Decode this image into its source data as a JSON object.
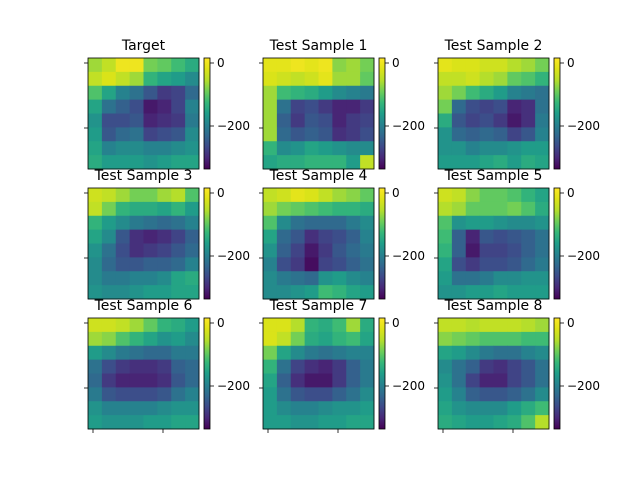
{
  "chart_data": {
    "type": "heatmap",
    "colormap": "viridis",
    "vmin": -310,
    "vmax": 15,
    "colorbar_ticks": [
      0,
      -200
    ],
    "colorbar_tick_labels": [
      "0",
      "−200"
    ],
    "grid_shape": [
      8,
      8
    ],
    "panels": [
      {
        "title": "Target",
        "values": [
          [
            -60,
            -40,
            0,
            0,
            -80,
            -90,
            -110,
            -130
          ],
          [
            -40,
            -20,
            -40,
            -60,
            -120,
            -140,
            -150,
            -170
          ],
          [
            -100,
            -140,
            -180,
            -200,
            -230,
            -260,
            -250,
            -210
          ],
          [
            -140,
            -200,
            -220,
            -240,
            -290,
            -280,
            -250,
            -180
          ],
          [
            -160,
            -240,
            -240,
            -230,
            -280,
            -270,
            -260,
            -190
          ],
          [
            -150,
            -230,
            -210,
            -200,
            -250,
            -240,
            -230,
            -170
          ],
          [
            -140,
            -180,
            -170,
            -170,
            -180,
            -180,
            -170,
            -160
          ],
          [
            -130,
            -150,
            -150,
            -150,
            -160,
            -150,
            -140,
            -140
          ]
        ]
      },
      {
        "title": "Test Sample 1",
        "values": [
          [
            -10,
            -10,
            0,
            -10,
            0,
            -70,
            -60,
            -80
          ],
          [
            -20,
            -30,
            -40,
            -30,
            -10,
            -60,
            -60,
            -90
          ],
          [
            -60,
            -110,
            -120,
            -130,
            -150,
            -170,
            -180,
            -190
          ],
          [
            -60,
            -200,
            -250,
            -240,
            -260,
            -280,
            -280,
            -260
          ],
          [
            -60,
            -220,
            -260,
            -230,
            -240,
            -280,
            -260,
            -250
          ],
          [
            -60,
            -210,
            -230,
            -220,
            -230,
            -270,
            -260,
            -240
          ],
          [
            -120,
            -170,
            -160,
            -140,
            -150,
            -160,
            -170,
            -170
          ],
          [
            -140,
            -130,
            -130,
            -120,
            -120,
            -120,
            -150,
            -40
          ]
        ]
      },
      {
        "title": "Test Sample 2",
        "values": [
          [
            -10,
            -20,
            -20,
            -30,
            -30,
            -50,
            -60,
            -80
          ],
          [
            -40,
            -40,
            -30,
            -50,
            -60,
            -90,
            -100,
            -120
          ],
          [
            -60,
            -80,
            -110,
            -130,
            -150,
            -180,
            -190,
            -200
          ],
          [
            -80,
            -210,
            -240,
            -250,
            -240,
            -280,
            -270,
            -200
          ],
          [
            -130,
            -230,
            -250,
            -240,
            -260,
            -290,
            -270,
            -190
          ],
          [
            -160,
            -210,
            -220,
            -210,
            -220,
            -250,
            -230,
            -180
          ],
          [
            -160,
            -160,
            -180,
            -170,
            -170,
            -160,
            -150,
            -150
          ],
          [
            -150,
            -150,
            -150,
            -140,
            -130,
            -150,
            -130,
            -140
          ]
        ]
      },
      {
        "title": "Test Sample 3",
        "values": [
          [
            -30,
            -40,
            -60,
            -80,
            -80,
            -60,
            -50,
            -100
          ],
          [
            -40,
            -80,
            -120,
            -130,
            -130,
            -140,
            -120,
            -150
          ],
          [
            -120,
            -150,
            -170,
            -190,
            -200,
            -210,
            -200,
            -180
          ],
          [
            -140,
            -170,
            -230,
            -270,
            -280,
            -270,
            -250,
            -220
          ],
          [
            -160,
            -200,
            -240,
            -270,
            -260,
            -250,
            -230,
            -210
          ],
          [
            -170,
            -210,
            -230,
            -230,
            -220,
            -220,
            -210,
            -180
          ],
          [
            -170,
            -190,
            -190,
            -180,
            -180,
            -170,
            -140,
            -130
          ],
          [
            -160,
            -170,
            -170,
            -160,
            -150,
            -150,
            -140,
            -140
          ]
        ]
      },
      {
        "title": "Test Sample 4",
        "values": [
          [
            -40,
            -30,
            -10,
            -20,
            -40,
            -60,
            -70,
            -90
          ],
          [
            -60,
            -80,
            -90,
            -100,
            -110,
            -120,
            -120,
            -130
          ],
          [
            -100,
            -170,
            -200,
            -210,
            -210,
            -210,
            -190,
            -170
          ],
          [
            -140,
            -210,
            -230,
            -270,
            -250,
            -240,
            -220,
            -180
          ],
          [
            -160,
            -220,
            -250,
            -290,
            -260,
            -230,
            -210,
            -190
          ],
          [
            -180,
            -240,
            -260,
            -300,
            -250,
            -240,
            -220,
            -200
          ],
          [
            -170,
            -190,
            -200,
            -210,
            -160,
            -150,
            -170,
            -180
          ],
          [
            -170,
            -170,
            -160,
            -150,
            -110,
            -120,
            -140,
            -150
          ]
        ]
      },
      {
        "title": "Test Sample 5",
        "values": [
          [
            -30,
            -40,
            -70,
            -90,
            -90,
            -100,
            -120,
            -140
          ],
          [
            -50,
            -60,
            -90,
            -90,
            -90,
            -80,
            -100,
            -130
          ],
          [
            -100,
            -160,
            -150,
            -150,
            -160,
            -170,
            -170,
            -160
          ],
          [
            -110,
            -220,
            -280,
            -230,
            -240,
            -230,
            -220,
            -200
          ],
          [
            -120,
            -220,
            -290,
            -250,
            -250,
            -240,
            -220,
            -200
          ],
          [
            -140,
            -240,
            -260,
            -240,
            -240,
            -230,
            -210,
            -190
          ],
          [
            -150,
            -200,
            -200,
            -190,
            -170,
            -170,
            -160,
            -160
          ],
          [
            -160,
            -160,
            -150,
            -150,
            -140,
            -150,
            -150,
            -150
          ]
        ]
      },
      {
        "title": "Test Sample 6",
        "values": [
          [
            -30,
            -30,
            -40,
            -60,
            -90,
            -120,
            -130,
            -150
          ],
          [
            -60,
            -70,
            -100,
            -120,
            -140,
            -160,
            -150,
            -170
          ],
          [
            -150,
            -170,
            -190,
            -200,
            -210,
            -210,
            -190,
            -190
          ],
          [
            -200,
            -240,
            -260,
            -270,
            -270,
            -260,
            -220,
            -210
          ],
          [
            -210,
            -260,
            -280,
            -280,
            -280,
            -270,
            -230,
            -210
          ],
          [
            -190,
            -230,
            -240,
            -240,
            -240,
            -230,
            -200,
            -180
          ],
          [
            -160,
            -180,
            -180,
            -180,
            -180,
            -170,
            -160,
            -160
          ],
          [
            -150,
            -160,
            -160,
            -160,
            -150,
            -150,
            -140,
            -140
          ]
        ]
      },
      {
        "title": "Test Sample 7",
        "values": [
          [
            -20,
            -20,
            -50,
            -120,
            -130,
            -110,
            -60,
            -130
          ],
          [
            -20,
            -40,
            -80,
            -130,
            -140,
            -120,
            -110,
            -140
          ],
          [
            -80,
            -140,
            -170,
            -190,
            -200,
            -190,
            -180,
            -180
          ],
          [
            -120,
            -200,
            -250,
            -270,
            -280,
            -260,
            -220,
            -190
          ],
          [
            -140,
            -220,
            -270,
            -290,
            -290,
            -260,
            -220,
            -190
          ],
          [
            -150,
            -200,
            -230,
            -240,
            -240,
            -220,
            -200,
            -170
          ],
          [
            -150,
            -170,
            -180,
            -180,
            -170,
            -160,
            -160,
            -150
          ],
          [
            -150,
            -150,
            -160,
            -160,
            -150,
            -150,
            -140,
            -140
          ]
        ]
      },
      {
        "title": "Test Sample 8",
        "values": [
          [
            -40,
            -40,
            -50,
            -40,
            -40,
            -40,
            -50,
            -60
          ],
          [
            -70,
            -80,
            -90,
            -100,
            -100,
            -100,
            -110,
            -110
          ],
          [
            -140,
            -150,
            -170,
            -190,
            -200,
            -200,
            -180,
            -170
          ],
          [
            -170,
            -200,
            -220,
            -260,
            -270,
            -250,
            -230,
            -200
          ],
          [
            -160,
            -200,
            -250,
            -280,
            -280,
            -250,
            -230,
            -200
          ],
          [
            -150,
            -180,
            -220,
            -230,
            -230,
            -220,
            -200,
            -170
          ],
          [
            -140,
            -160,
            -170,
            -170,
            -170,
            -150,
            -130,
            -110
          ],
          [
            -130,
            -140,
            -150,
            -150,
            -140,
            -130,
            -100,
            -50
          ]
        ]
      }
    ]
  }
}
